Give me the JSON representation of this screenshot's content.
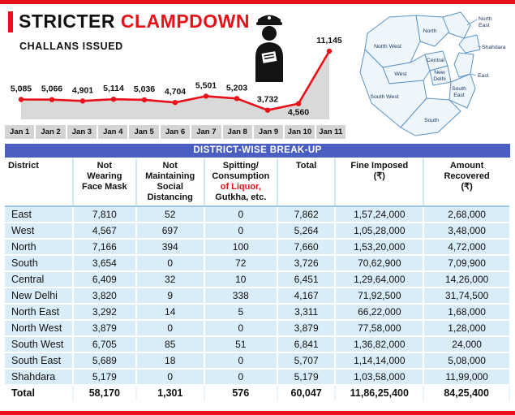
{
  "colors": {
    "accent_red": "#e8111a",
    "title_bar_bg": "#4a5fc1",
    "row_bg": "#d9edf9",
    "map_fill": "#eef6fc",
    "map_stroke": "#5c93c4",
    "map_label": "#16355e"
  },
  "header": {
    "title_black": "STRICTER",
    "title_red": "CLAMPDOWN",
    "subtitle": "CHALLANS ISSUED"
  },
  "chart_data": {
    "type": "line",
    "title": "CHALLANS ISSUED",
    "x": [
      "Jan 1",
      "Jan 2",
      "Jan 3",
      "Jan 4",
      "Jan 5",
      "Jan 6",
      "Jan 7",
      "Jan 8",
      "Jan 9",
      "Jan 10",
      "Jan 11"
    ],
    "values": [
      5085,
      5066,
      4901,
      5114,
      5036,
      4704,
      5501,
      5203,
      3732,
      4560,
      11145
    ],
    "labels": [
      "5,085",
      "5,066",
      "4,901",
      "5,114",
      "5,036",
      "4,704",
      "5,501",
      "5,203",
      "3,732",
      "4,560",
      "11,145"
    ],
    "line_color": "#e8111a",
    "fill_color": "#d9d9d9",
    "marker_color": "#e8111a",
    "grid": false,
    "legend": false
  },
  "map": {
    "districts": [
      "North",
      "North East",
      "Shahdara",
      "North West",
      "West",
      "Central",
      "New Delhi",
      "East",
      "South West",
      "South East",
      "South"
    ]
  },
  "table": {
    "title": "DISTRICT-WISE BREAK-UP",
    "red_line": "of Liquor,",
    "columns": [
      "District",
      "Not\nWearing\nFace Mask",
      "Not\nMaintaining\nSocial\nDistancing",
      "Spitting/\nConsumption\nof Liquor,\nGutkha, etc.",
      "Total",
      "Fine Imposed\n(₹)",
      "Amount\nRecovered\n(₹)"
    ],
    "rows": [
      [
        "East",
        "7,810",
        "52",
        "0",
        "7,862",
        "1,57,24,000",
        "2,68,000"
      ],
      [
        "West",
        "4,567",
        "697",
        "0",
        "5,264",
        "1,05,28,000",
        "3,48,000"
      ],
      [
        "North",
        "7,166",
        "394",
        "100",
        "7,660",
        "1,53,20,000",
        "4,72,000"
      ],
      [
        "South",
        "3,654",
        "0",
        "72",
        "3,726",
        "70,62,900",
        "7,09,900"
      ],
      [
        "Central",
        "6,409",
        "32",
        "10",
        "6,451",
        "1,29,64,000",
        "14,26,000"
      ],
      [
        "New Delhi",
        "3,820",
        "9",
        "338",
        "4,167",
        "71,92,500",
        "31,74,500"
      ],
      [
        "North East",
        "3,292",
        "14",
        "5",
        "3,311",
        "66,22,000",
        "1,68,000"
      ],
      [
        "North West",
        "3,879",
        "0",
        "0",
        "3,879",
        "77,58,000",
        "1,28,000"
      ],
      [
        "South West",
        "6,705",
        "85",
        "51",
        "6,841",
        "1,36,82,000",
        "24,000"
      ],
      [
        "South East",
        "5,689",
        "18",
        "0",
        "5,707",
        "1,14,14,000",
        "5,08,000"
      ],
      [
        "Shahdara",
        "5,179",
        "0",
        "0",
        "5,179",
        "1,03,58,000",
        "11,99,000"
      ]
    ],
    "total_row": [
      "Total",
      "58,170",
      "1,301",
      "576",
      "60,047",
      "11,86,25,400",
      "84,25,400"
    ]
  }
}
